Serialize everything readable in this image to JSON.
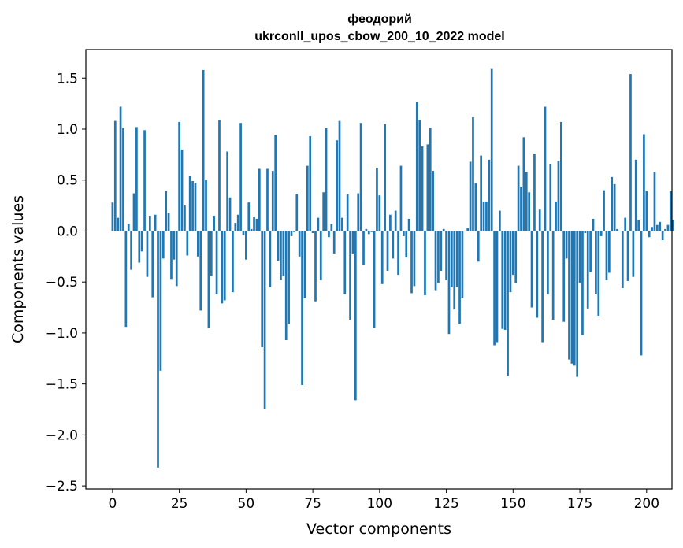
{
  "chart_data": {
    "type": "bar",
    "title_line1": "феодорий",
    "title_line2": "ukrconll_upos_cbow_200_10_2022 model",
    "xlabel": "Vector components",
    "ylabel": "Components values",
    "xlim": [
      -10,
      209.5
    ],
    "ylim": [
      -2.53,
      1.78
    ],
    "xticks": [
      0,
      25,
      50,
      75,
      100,
      125,
      150,
      175,
      200
    ],
    "xtick_labels": [
      "0",
      "25",
      "50",
      "75",
      "100",
      "125",
      "150",
      "175",
      "200"
    ],
    "yticks": [
      -2.5,
      -2.0,
      -1.5,
      -1.0,
      -0.5,
      0.0,
      0.5,
      1.0,
      1.5
    ],
    "ytick_labels": [
      "−2.5",
      "−2.0",
      "−1.5",
      "−1.0",
      "−0.5",
      "0.0",
      "0.5",
      "1.0",
      "1.5"
    ],
    "bar_color": "#1f77b4",
    "bar_width": 0.8,
    "values": [
      0.28,
      1.08,
      0.13,
      1.22,
      1.01,
      -0.94,
      0.07,
      -0.38,
      0.37,
      1.02,
      -0.31,
      -0.2,
      0.99,
      -0.45,
      0.15,
      -0.65,
      0.16,
      -2.32,
      -1.37,
      -0.27,
      0.39,
      0.18,
      -0.47,
      -0.28,
      -0.54,
      1.07,
      0.8,
      0.25,
      -0.24,
      0.54,
      0.49,
      0.47,
      -0.25,
      -0.78,
      1.58,
      0.5,
      -0.95,
      -0.44,
      0.15,
      -0.62,
      1.09,
      -0.71,
      -0.68,
      0.78,
      0.33,
      -0.6,
      0.08,
      0.16,
      1.06,
      -0.04,
      -0.28,
      0.28,
      0.02,
      0.14,
      0.12,
      0.61,
      -1.14,
      -1.75,
      0.61,
      -0.55,
      0.59,
      0.94,
      -0.29,
      -0.48,
      -0.44,
      -1.07,
      -0.91,
      -0.05,
      -0.01,
      0.36,
      -0.25,
      -1.51,
      -0.66,
      0.64,
      0.93,
      -0.02,
      -0.69,
      0.13,
      -0.48,
      0.38,
      1.01,
      -0.06,
      0.07,
      -0.22,
      0.89,
      1.08,
      0.13,
      -0.62,
      0.36,
      -0.87,
      -0.22,
      -1.66,
      0.37,
      1.06,
      -0.33,
      0.02,
      -0.03,
      -0.01,
      -0.95,
      0.62,
      0.35,
      -0.52,
      1.05,
      -0.39,
      0.16,
      -0.27,
      0.2,
      -0.43,
      0.64,
      -0.05,
      -0.26,
      0.12,
      -0.61,
      -0.54,
      1.27,
      1.09,
      0.83,
      -0.63,
      0.85,
      1.01,
      0.59,
      -0.58,
      -0.51,
      -0.39,
      0.02,
      -0.48,
      -1.01,
      -0.55,
      -0.77,
      -0.55,
      -0.91,
      -0.66,
      0.0,
      0.03,
      0.68,
      1.12,
      0.47,
      -0.3,
      0.74,
      0.29,
      0.29,
      0.7,
      1.59,
      -1.12,
      -1.09,
      0.2,
      -0.96,
      -0.97,
      -1.42,
      -0.6,
      -0.43,
      -0.51,
      0.64,
      0.43,
      0.92,
      0.58,
      0.38,
      -0.75,
      0.76,
      -0.85,
      0.21,
      -1.09,
      1.22,
      -0.62,
      0.66,
      -0.87,
      0.29,
      0.69,
      1.07,
      -0.89,
      -0.27,
      -1.26,
      -1.3,
      -1.32,
      -1.43,
      -0.51,
      -1.02,
      -0.02,
      -0.76,
      -0.4,
      0.12,
      -0.62,
      -0.83,
      -0.05,
      0.4,
      -0.48,
      -0.41,
      0.53,
      0.46,
      0.02,
      0.0,
      -0.56,
      0.13,
      -0.49,
      1.54,
      -0.45,
      0.7,
      0.11,
      -1.22,
      0.95,
      0.39,
      -0.06,
      0.04,
      0.58,
      0.06,
      0.09,
      -0.09,
      0.02,
      0.06,
      0.39,
      0.11
    ]
  }
}
